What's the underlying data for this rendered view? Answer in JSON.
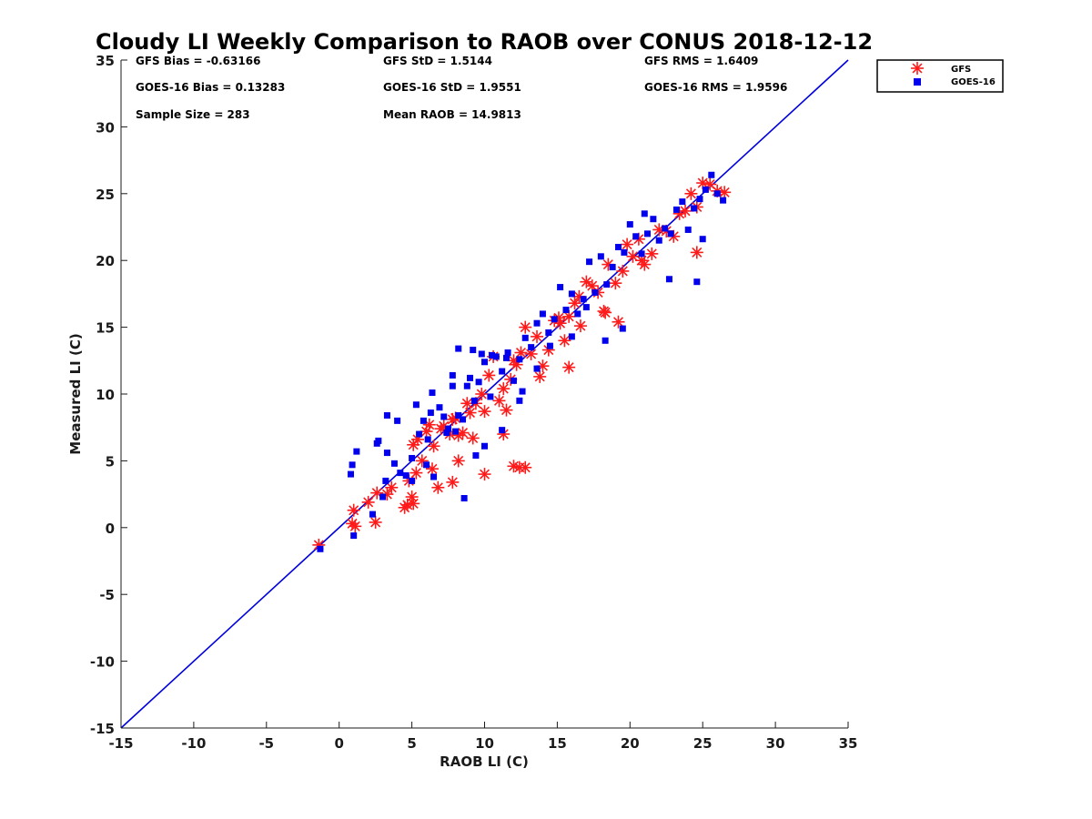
{
  "chart_data": {
    "type": "scatter",
    "title": "Cloudy LI Weekly Comparison to RAOB over CONUS 2018-12-12",
    "xlabel": "RAOB LI (C)",
    "ylabel": "Measured LI (C)",
    "xlim": [
      -15,
      35
    ],
    "ylim": [
      -15,
      35
    ],
    "xticks": [
      -15,
      -10,
      -5,
      0,
      5,
      10,
      15,
      20,
      25,
      30,
      35
    ],
    "yticks": [
      -15,
      -10,
      -5,
      0,
      5,
      10,
      15,
      20,
      25,
      30,
      35
    ],
    "xtick_labels": [
      "-15",
      "-10",
      "-5",
      "0",
      "5",
      "10",
      "15",
      "20",
      "25",
      "30",
      "35"
    ],
    "ytick_labels": [
      "-15",
      "-10",
      "-5",
      "0",
      "5",
      "10",
      "15",
      "20",
      "25",
      "30",
      "35"
    ],
    "legend_position": "top-right-outside",
    "reference_line": {
      "name": "1:1",
      "color": "#0000dd",
      "from": [
        -15,
        -15
      ],
      "to": [
        35,
        35
      ]
    },
    "stats": [
      "GFS Bias = -0.63166",
      "GFS StD = 1.5144",
      "GFS RMS = 1.6409",
      "GOES-16 Bias = 0.13283",
      "GOES-16 StD = 1.9551",
      "GOES-16 RMS = 1.9596",
      "Sample Size = 283",
      "Mean RAOB = 14.9813"
    ],
    "series": [
      {
        "name": "GFS",
        "marker": "asterisk",
        "color": "#ff1a1a",
        "x": [
          -1.4,
          0.9,
          1.0,
          1.1,
          2.0,
          2.5,
          2.6,
          3.3,
          3.6,
          4.5,
          4.7,
          5.0,
          5.1,
          5.3,
          5.4,
          5.7,
          6.0,
          6.2,
          6.5,
          7.0,
          7.2,
          7.6,
          7.8,
          8.0,
          8.2,
          8.5,
          8.8,
          9.0,
          9.4,
          9.8,
          10.0,
          10.3,
          10.6,
          11.0,
          11.3,
          11.5,
          11.8,
          12.0,
          12.2,
          12.5,
          12.8,
          13.2,
          13.6,
          14.0,
          14.4,
          14.8,
          15.1,
          15.5,
          15.8,
          16.2,
          16.5,
          17.0,
          17.4,
          17.8,
          18.2,
          18.5,
          19.0,
          19.5,
          19.8,
          20.2,
          20.6,
          21.0,
          21.5,
          22.0,
          22.5,
          23.0,
          23.4,
          23.8,
          24.2,
          24.6,
          25.0,
          25.5,
          26.0,
          26.5,
          12.8,
          13.8,
          15.8,
          12.4,
          12.0,
          10.0,
          7.8,
          6.8,
          4.8,
          5.1,
          11.3,
          9.2,
          18.3,
          19.2,
          24.6,
          20.8,
          15.2,
          16.6,
          8.2,
          6.4
        ],
        "y": [
          -1.3,
          0.3,
          1.3,
          0.1,
          1.9,
          0.4,
          2.6,
          2.5,
          3.0,
          1.5,
          1.7,
          2.3,
          6.2,
          4.1,
          6.6,
          5.0,
          7.2,
          7.7,
          6.1,
          7.4,
          7.6,
          7.0,
          8.1,
          8.2,
          6.9,
          7.1,
          9.3,
          8.6,
          9.3,
          10.0,
          8.7,
          11.4,
          12.8,
          9.5,
          10.4,
          8.8,
          11.1,
          12.5,
          12.2,
          13.1,
          15.0,
          13.0,
          14.3,
          12.1,
          13.3,
          15.5,
          15.7,
          14.0,
          15.8,
          16.8,
          17.3,
          18.4,
          18.1,
          17.6,
          16.2,
          19.7,
          18.3,
          19.2,
          21.2,
          20.3,
          21.6,
          19.7,
          20.5,
          22.3,
          22.2,
          21.8,
          23.5,
          23.7,
          25.0,
          24.0,
          25.8,
          25.7,
          25.2,
          25.1,
          4.5,
          11.3,
          12.0,
          4.5,
          4.6,
          4.0,
          3.4,
          3.0,
          3.5,
          1.8,
          7.0,
          6.7,
          16.1,
          15.4,
          20.6,
          20.0,
          15.3,
          15.1,
          5.0,
          4.4
        ]
      },
      {
        "name": "GOES-16",
        "marker": "square",
        "color": "#0000ee",
        "x": [
          -1.3,
          0.8,
          0.9,
          1.0,
          1.2,
          2.3,
          2.6,
          2.7,
          3.0,
          3.2,
          3.3,
          3.8,
          4.2,
          4.6,
          5.0,
          5.3,
          5.5,
          5.8,
          6.0,
          6.3,
          6.5,
          6.9,
          7.2,
          7.4,
          7.8,
          8.0,
          8.2,
          8.5,
          8.8,
          9.0,
          9.3,
          9.6,
          10.0,
          10.4,
          10.8,
          11.2,
          11.6,
          12.0,
          12.4,
          12.8,
          13.2,
          13.6,
          14.0,
          14.4,
          14.8,
          15.2,
          15.6,
          16.0,
          16.4,
          16.8,
          17.2,
          17.6,
          18.0,
          18.4,
          18.8,
          19.2,
          19.6,
          20.0,
          20.4,
          20.8,
          21.2,
          21.6,
          22.0,
          22.4,
          22.8,
          23.2,
          23.6,
          24.0,
          24.4,
          24.8,
          25.2,
          25.6,
          26.0,
          26.4,
          25.0,
          21.0,
          19.5,
          18.3,
          16.0,
          14.5,
          12.6,
          11.2,
          10.0,
          9.4,
          8.6,
          7.5,
          6.1,
          5.0,
          4.0,
          3.3,
          8.2,
          9.8,
          10.5,
          12.4,
          17.0,
          22.7,
          24.6,
          9.2,
          7.8,
          11.5,
          6.4,
          13.6
        ],
        "y": [
          -1.6,
          4.0,
          4.7,
          -0.6,
          5.7,
          1.0,
          6.3,
          6.5,
          2.3,
          3.5,
          5.6,
          4.8,
          4.1,
          3.9,
          3.5,
          9.2,
          7.0,
          8.0,
          4.7,
          8.6,
          3.8,
          9.0,
          8.3,
          7.1,
          11.4,
          7.2,
          8.4,
          8.1,
          10.6,
          11.2,
          9.5,
          10.9,
          12.4,
          9.8,
          12.8,
          11.7,
          13.1,
          11.0,
          12.6,
          14.2,
          13.5,
          11.9,
          16.0,
          14.6,
          15.6,
          18.0,
          16.3,
          17.5,
          16.0,
          17.1,
          19.9,
          17.6,
          20.3,
          18.2,
          19.5,
          21.0,
          20.6,
          22.7,
          21.8,
          20.5,
          22.0,
          23.1,
          21.5,
          22.4,
          22.0,
          23.8,
          24.4,
          22.3,
          23.9,
          24.6,
          25.3,
          26.4,
          25.0,
          24.5,
          21.6,
          23.5,
          14.9,
          14.0,
          14.3,
          13.6,
          10.2,
          7.3,
          6.1,
          5.4,
          2.2,
          7.4,
          6.6,
          5.2,
          8.0,
          8.4,
          13.4,
          13.0,
          12.9,
          9.5,
          16.5,
          18.6,
          18.4,
          13.3,
          10.6,
          12.7,
          10.1,
          15.3
        ]
      }
    ]
  }
}
